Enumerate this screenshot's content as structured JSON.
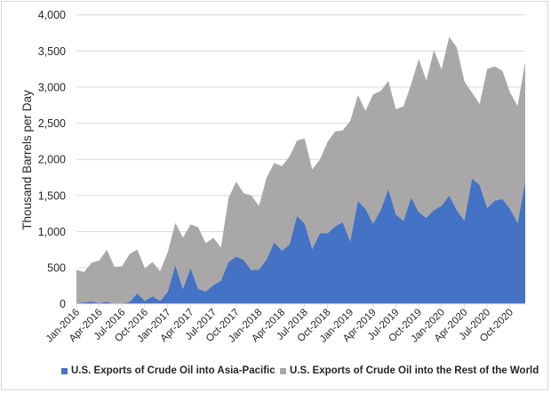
{
  "chart_data": {
    "type": "area",
    "stacked": true,
    "title": "",
    "xlabel": "",
    "ylabel": "Thousand Barrels per Day",
    "ylim": [
      0,
      4000
    ],
    "yticks": [
      0,
      500,
      1000,
      1500,
      2000,
      2500,
      3000,
      3500,
      4000
    ],
    "ytick_labels": [
      "0",
      "500",
      "1,000",
      "1,500",
      "2,000",
      "2,500",
      "3,000",
      "3,500",
      "4,000"
    ],
    "grid": true,
    "legend_position": "bottom",
    "x": [
      "Jan-2016",
      "Feb-2016",
      "Mar-2016",
      "Apr-2016",
      "May-2016",
      "Jun-2016",
      "Jul-2016",
      "Aug-2016",
      "Sep-2016",
      "Oct-2016",
      "Nov-2016",
      "Dec-2016",
      "Jan-2017",
      "Feb-2017",
      "Mar-2017",
      "Apr-2017",
      "May-2017",
      "Jun-2017",
      "Jul-2017",
      "Aug-2017",
      "Sep-2017",
      "Oct-2017",
      "Nov-2017",
      "Dec-2017",
      "Jan-2018",
      "Feb-2018",
      "Mar-2018",
      "Apr-2018",
      "May-2018",
      "Jun-2018",
      "Jul-2018",
      "Aug-2018",
      "Sep-2018",
      "Oct-2018",
      "Nov-2018",
      "Dec-2018",
      "Jan-2019",
      "Feb-2019",
      "Mar-2019",
      "Apr-2019",
      "May-2019",
      "Jun-2019",
      "Jul-2019",
      "Aug-2019",
      "Sep-2019",
      "Oct-2019",
      "Nov-2019",
      "Dec-2019",
      "Jan-2020",
      "Feb-2020",
      "Mar-2020",
      "Apr-2020",
      "May-2020",
      "Jun-2020",
      "Jul-2020",
      "Aug-2020",
      "Sep-2020",
      "Oct-2020",
      "Nov-2020",
      "Dec-2020"
    ],
    "xtick_labels": [
      "Jan-2016",
      "Apr-2016",
      "Jul-2016",
      "Oct-2016",
      "Jan-2017",
      "Apr-2017",
      "Jul-2017",
      "Oct-2017",
      "Jan-2018",
      "Apr-2018",
      "Jul-2018",
      "Oct-2018",
      "Jan-2019",
      "Apr-2019",
      "Jul-2019",
      "Oct-2019",
      "Jan-2020",
      "Apr-2020",
      "Jul-2020",
      "Oct-2020"
    ],
    "series": [
      {
        "name": "U.S. Exports of Crude Oil into Asia-Pacific",
        "color": "#4472c4",
        "values": [
          10,
          20,
          30,
          10,
          30,
          0,
          5,
          25,
          145,
          40,
          105,
          40,
          165,
          535,
          205,
          495,
          205,
          170,
          260,
          320,
          580,
          655,
          605,
          465,
          475,
          615,
          850,
          735,
          820,
          1220,
          1110,
          760,
          975,
          975,
          1070,
          1130,
          865,
          1425,
          1315,
          1110,
          1295,
          1590,
          1235,
          1150,
          1470,
          1270,
          1190,
          1300,
          1355,
          1500,
          1300,
          1150,
          1735,
          1645,
          1325,
          1430,
          1450,
          1315,
          1120,
          1685
        ]
      },
      {
        "name": "U.S. Exports of Crude Oil into the Rest of the World",
        "color": "#a9a7a7",
        "values": [
          460,
          420,
          540,
          590,
          720,
          510,
          515,
          665,
          605,
          450,
          475,
          410,
          550,
          585,
          710,
          605,
          855,
          670,
          655,
          460,
          885,
          1035,
          925,
          1035,
          880,
          1130,
          1100,
          1170,
          1215,
          1040,
          1180,
          1100,
          1020,
          1265,
          1315,
          1270,
          1665,
          1465,
          1355,
          1790,
          1650,
          1495,
          1460,
          1585,
          1570,
          2120,
          1900,
          2210,
          1890,
          2195,
          2250,
          1930,
          1190,
          1120,
          1925,
          1855,
          1775,
          1610,
          1620,
          1660
        ]
      }
    ]
  }
}
